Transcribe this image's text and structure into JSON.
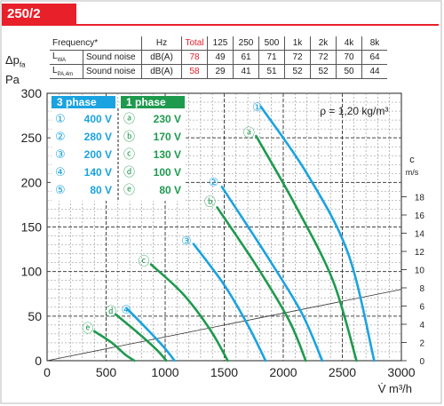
{
  "model": "250/2",
  "noise_table": {
    "headers": [
      "Frequency*",
      "Hz",
      "Total",
      "125",
      "250",
      "500",
      "1k",
      "2k",
      "4k",
      "8k"
    ],
    "rows": [
      {
        "sym": "L",
        "sub": "WA",
        "name": "Sound noise",
        "unit": "dB(A)",
        "total": "78",
        "values": [
          "49",
          "61",
          "71",
          "72",
          "72",
          "70",
          "64"
        ]
      },
      {
        "sym": "L",
        "sub": "PA,4m",
        "name": "Sound noise",
        "unit": "dB(A)",
        "total": "58",
        "values": [
          "29",
          "41",
          "51",
          "52",
          "52",
          "50",
          "44"
        ]
      }
    ]
  },
  "pressure_label": {
    "symbol": "Δp",
    "sub": "fa",
    "unit": "Pa"
  },
  "legend": {
    "three_phase_title": "3 phase",
    "one_phase_title": "1 phase",
    "three_phase": [
      {
        "mark": "①",
        "voltage": "400 V"
      },
      {
        "mark": "②",
        "voltage": "280 V"
      },
      {
        "mark": "③",
        "voltage": "200 V"
      },
      {
        "mark": "④",
        "voltage": "140 V"
      },
      {
        "mark": "⑤",
        "voltage": "80 V"
      }
    ],
    "one_phase": [
      {
        "mark": "ⓐ",
        "voltage": "230 V"
      },
      {
        "mark": "ⓑ",
        "voltage": "170 V"
      },
      {
        "mark": "ⓒ",
        "voltage": "130 V"
      },
      {
        "mark": "ⓓ",
        "voltage": "100 V"
      },
      {
        "mark": "ⓔ",
        "voltage": "80 V"
      }
    ]
  },
  "density_note": "ρ = 1,20 kg/m³",
  "colors": {
    "three_phase": "#1aa3e0",
    "one_phase": "#1e9a4e",
    "accent": "#e8202a"
  },
  "chart_data": {
    "type": "line",
    "xlabel": "V̇ m³/h",
    "ylabel": "Δpfa Pa",
    "xlim": [
      0,
      3000
    ],
    "ylim": [
      0,
      300
    ],
    "xticks": [
      0,
      500,
      1000,
      1500,
      2000,
      2500,
      3000
    ],
    "yticks": [
      0,
      50,
      100,
      150,
      200,
      250,
      300
    ],
    "grid": true,
    "series": [
      {
        "name": "①",
        "group": "3 phase",
        "points": [
          [
            1810,
            285
          ],
          [
            2200,
            210
          ],
          [
            2550,
            120
          ],
          [
            2770,
            0
          ]
        ]
      },
      {
        "name": "ⓐ",
        "group": "1 phase",
        "points": [
          [
            1770,
            252
          ],
          [
            2100,
            175
          ],
          [
            2420,
            90
          ],
          [
            2620,
            0
          ]
        ]
      },
      {
        "name": "②",
        "group": "3 phase",
        "points": [
          [
            1480,
            195
          ],
          [
            1850,
            120
          ],
          [
            2150,
            55
          ],
          [
            2330,
            0
          ]
        ]
      },
      {
        "name": "ⓑ",
        "group": "1 phase",
        "points": [
          [
            1440,
            172
          ],
          [
            1780,
            105
          ],
          [
            2050,
            45
          ],
          [
            2190,
            0
          ]
        ]
      },
      {
        "name": "③",
        "group": "3 phase",
        "points": [
          [
            1240,
            131
          ],
          [
            1500,
            85
          ],
          [
            1700,
            40
          ],
          [
            1850,
            0
          ]
        ]
      },
      {
        "name": "ⓒ",
        "group": "1 phase",
        "points": [
          [
            880,
            108
          ],
          [
            1150,
            75
          ],
          [
            1380,
            35
          ],
          [
            1530,
            0
          ]
        ]
      },
      {
        "name": "④",
        "group": "3 phase",
        "points": [
          [
            680,
            58
          ],
          [
            850,
            35
          ],
          [
            990,
            15
          ],
          [
            1080,
            0
          ]
        ]
      },
      {
        "name": "ⓓ",
        "group": "1 phase",
        "points": [
          [
            580,
            52
          ],
          [
            780,
            30
          ],
          [
            930,
            12
          ],
          [
            1010,
            0
          ]
        ]
      },
      {
        "name": "ⓔ",
        "group": "1 phase",
        "points": [
          [
            400,
            33
          ],
          [
            550,
            20
          ],
          [
            660,
            7
          ],
          [
            740,
            0
          ]
        ]
      }
    ],
    "curve_labels": [
      {
        "name": "①",
        "x": 1780,
        "y": 285
      },
      {
        "name": "ⓐ",
        "x": 1710,
        "y": 256
      },
      {
        "name": "②",
        "x": 1410,
        "y": 201
      },
      {
        "name": "ⓑ",
        "x": 1380,
        "y": 179
      },
      {
        "name": "③",
        "x": 1180,
        "y": 135
      },
      {
        "name": "ⓒ",
        "x": 820,
        "y": 112
      },
      {
        "name": "④",
        "x": 670,
        "y": 58
      },
      {
        "name": "ⓓ",
        "x": 540,
        "y": 56
      },
      {
        "name": "ⓔ",
        "x": 345,
        "y": 37
      }
    ],
    "velocity_axis": {
      "label_top": "c",
      "unit": "m/s",
      "ticks": [
        0,
        2,
        4,
        6,
        8,
        10,
        12,
        14,
        16,
        18
      ],
      "max": 20,
      "reference_line": {
        "from": [
          0,
          0
        ],
        "to": [
          3000,
          80
        ]
      }
    }
  }
}
